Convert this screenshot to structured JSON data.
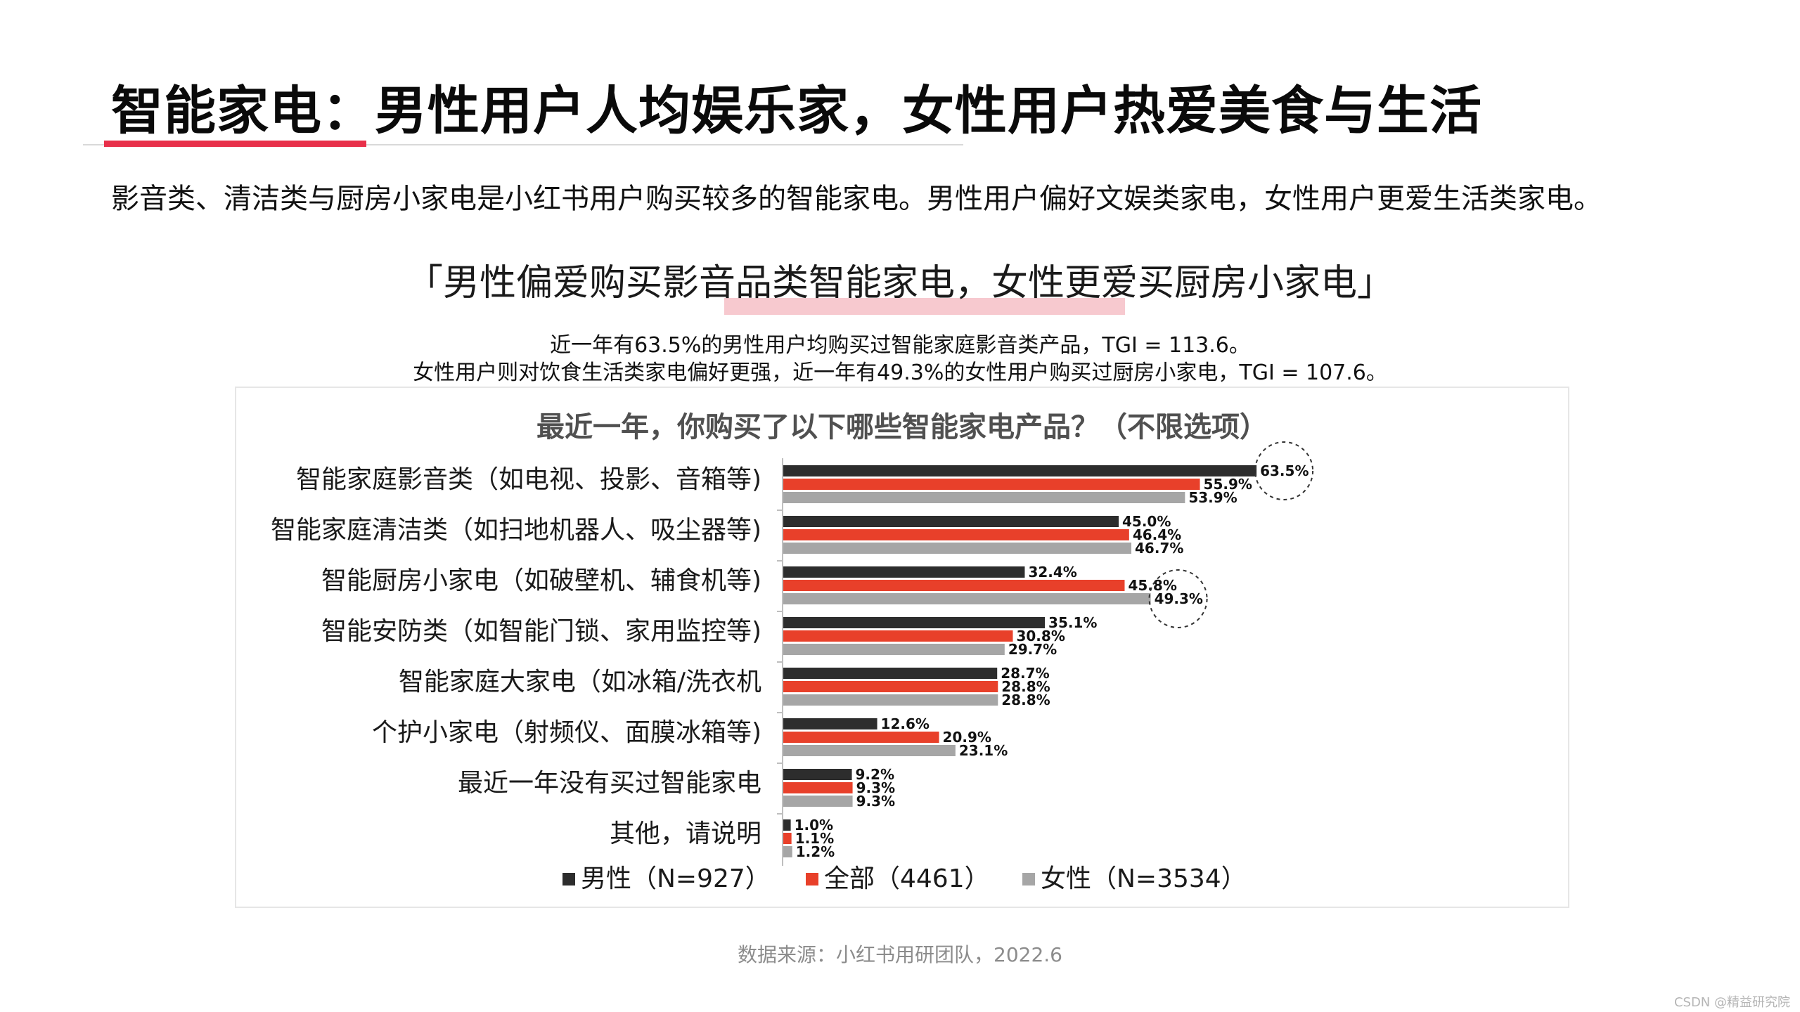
{
  "page": {
    "title": "智能家电：男性用户人均娱乐家，女性用户热爱美食与生活",
    "summary": "影音类、清洁类与厨房小家电是小红书用户购买较多的智能家电。男性用户偏好文娱类家电，女性用户更爱生活类家电。",
    "headline": "「男性偏爱购买影音品类智能家电，女性更爱买厨房小家电」",
    "notes": [
      "近一年有63.5%的男性用户均购买过智能家庭影音类产品，TGI = 113.6。",
      "女性用户则对饮食生活类家电偏好更强，近一年有49.3%的女性用户购买过厨房小家电，TGI = 107.6。"
    ],
    "source": "数据来源：小红书用研团队，2022.6",
    "watermark": "CSDN @精益研究院"
  },
  "chart_data": {
    "type": "bar",
    "orientation": "horizontal",
    "title": "最近一年，你购买了以下哪些智能家电产品？（不限选项）",
    "categories": [
      "智能家庭影音类（如电视、投影、音箱等)",
      "智能家庭清洁类（如扫地机器人、吸尘器等)",
      "智能厨房小家电（如破壁机、辅食机等)",
      "智能安防类（如智能门锁、家用监控等)",
      "智能家庭大家电（如冰箱/洗衣机",
      "个护小家电（射频仪、面膜冰箱等)",
      "最近一年没有买过智能家电",
      "其他，请说明"
    ],
    "series": [
      {
        "name": "男性（N=927）",
        "color": "#2d2d2d",
        "values": [
          63.5,
          45.0,
          32.4,
          35.1,
          28.7,
          12.6,
          9.2,
          1.0
        ]
      },
      {
        "name": "全部（4461）",
        "color": "#e8402a",
        "values": [
          55.9,
          46.4,
          45.8,
          30.8,
          28.8,
          20.9,
          9.3,
          1.1
        ]
      },
      {
        "name": "女性（N=3534）",
        "color": "#a6a6a6",
        "values": [
          53.9,
          46.7,
          49.3,
          29.7,
          28.8,
          23.1,
          9.3,
          1.2
        ]
      }
    ],
    "value_labels": [
      [
        "63.5%",
        "55.9%",
        "53.9%"
      ],
      [
        "45.0%",
        "46.4%",
        "46.7%"
      ],
      [
        "32.4%",
        "45.8%",
        "49.3%"
      ],
      [
        "35.1%",
        "30.8%",
        "29.7%"
      ],
      [
        "28.7%",
        "28.8%",
        "28.8%"
      ],
      [
        "12.6%",
        "20.9%",
        "23.1%"
      ],
      [
        "9.2%",
        "9.3%",
        "9.3%"
      ],
      [
        "1.0%",
        "1.1%",
        "1.2%"
      ]
    ],
    "xlim": [
      0,
      65
    ],
    "grid": false,
    "legend_position": "bottom",
    "highlights": [
      {
        "category_index": 0,
        "series_index": 0
      },
      {
        "category_index": 2,
        "series_index": 2
      }
    ]
  }
}
